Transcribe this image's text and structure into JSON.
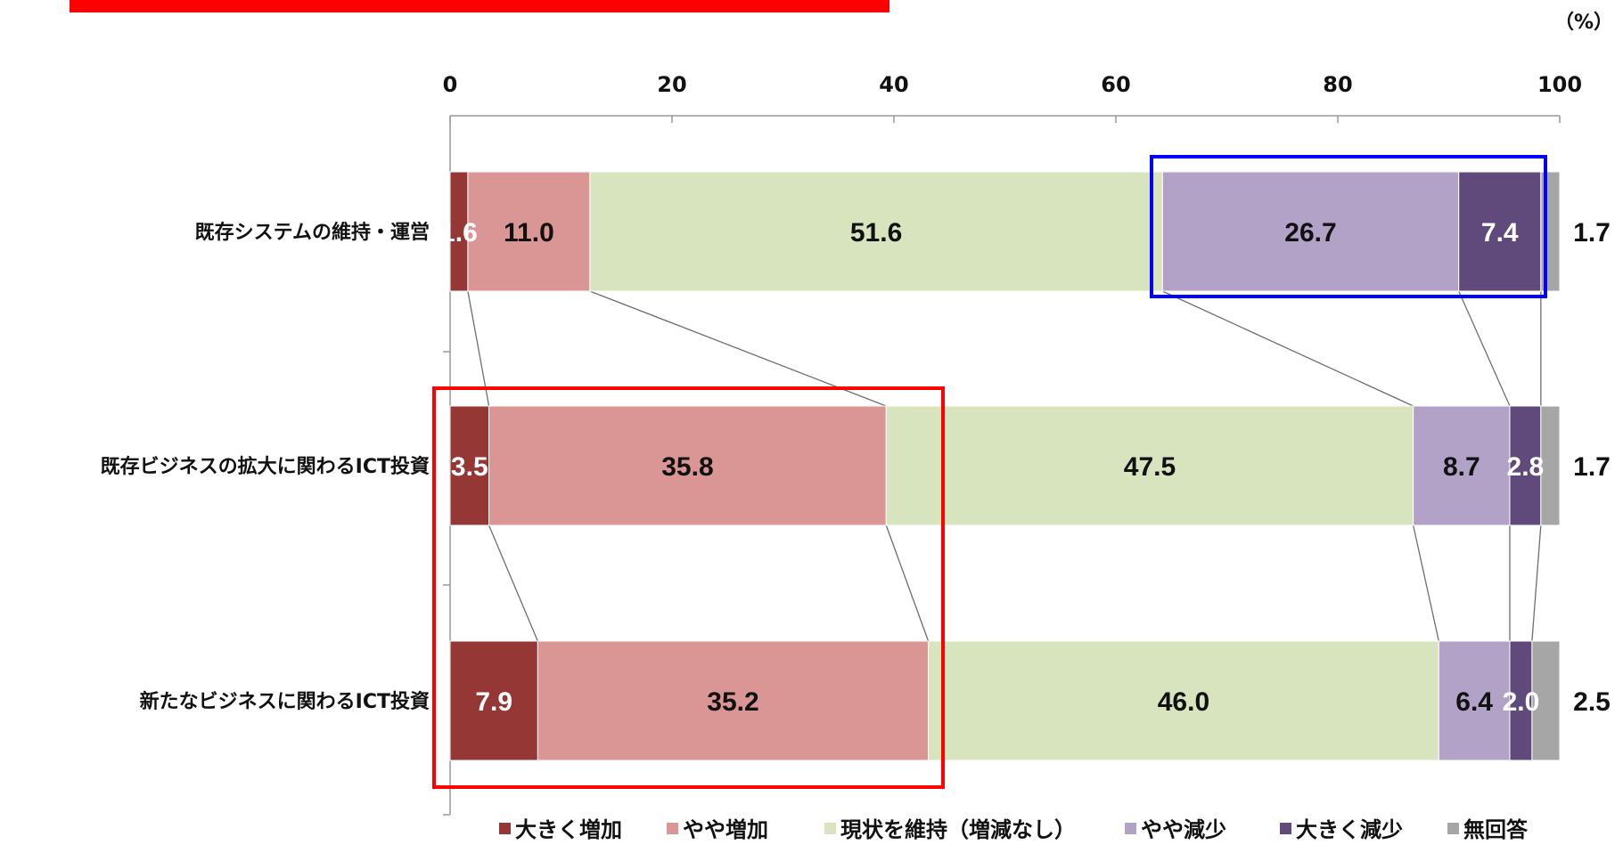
{
  "chart_data": {
    "type": "bar",
    "orientation": "horizontal",
    "stacked": true,
    "unit_label": "（%）",
    "xlim": [
      0,
      100
    ],
    "x_ticks": [
      "0",
      "20",
      "40",
      "60",
      "80",
      "100"
    ],
    "categories": [
      "既存システムの維持・運営",
      "既存ビジネスの拡大に関わるICT投資",
      "新たなビジネスに関わるICT投資"
    ],
    "series": [
      {
        "name": "大きく増加",
        "color": "#953735",
        "values": [
          1.6,
          3.5,
          7.9
        ],
        "labels": [
          "1.6",
          "3.5",
          "7.9"
        ]
      },
      {
        "name": "やや増加",
        "color": "#d99694",
        "values": [
          11.0,
          35.8,
          35.2
        ],
        "labels": [
          "11.0",
          "35.8",
          "35.2"
        ]
      },
      {
        "name": "現状を維持（増減なし）",
        "color": "#d7e4bd",
        "values": [
          51.6,
          47.5,
          46.0
        ],
        "labels": [
          "51.6",
          "47.5",
          "46.0"
        ]
      },
      {
        "name": "やや減少",
        "color": "#b3a2c7",
        "values": [
          26.7,
          8.7,
          6.4
        ],
        "labels": [
          "26.7",
          "8.7",
          "6.4"
        ]
      },
      {
        "name": "大きく減少",
        "color": "#604a7b",
        "values": [
          7.4,
          2.8,
          2.0
        ],
        "labels": [
          "7.4",
          "2.8",
          "2.0"
        ]
      },
      {
        "name": "無回答",
        "color": "#a6a6a6",
        "values": [
          1.7,
          1.7,
          2.5
        ],
        "labels": [
          "1.7",
          "1.7",
          "2.5"
        ]
      }
    ],
    "legend_position": "bottom",
    "series_lines": true,
    "highlights": [
      {
        "color": "#0000ff",
        "note": "top row, やや減少 and 大きく減少"
      },
      {
        "color": "#ff0000",
        "note": "rows 2 and 3, 大きく増加 and やや増加"
      }
    ],
    "header_bar_color": "#ff0000"
  }
}
